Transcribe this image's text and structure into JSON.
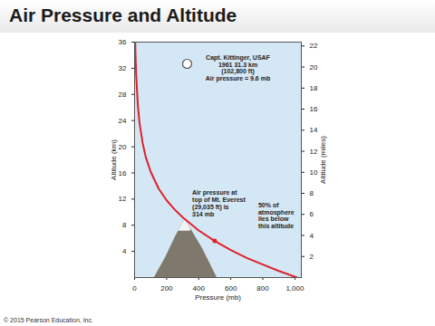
{
  "footer": "© 2015 Pearson Education, Inc.",
  "chart_data": {
    "type": "line",
    "title": "Air Pressure and Altitude",
    "x_label": "Pressure (mb)",
    "y_label": "Altitude (km)",
    "y2_label": "Altitude (miles)",
    "x": [
      1013,
      900,
      800,
      700,
      600,
      500,
      400,
      300,
      250,
      200,
      150,
      100,
      70,
      50,
      30,
      20,
      10,
      6,
      4
    ],
    "values": [
      0,
      1,
      2,
      3,
      4.2,
      5.6,
      7.2,
      9.2,
      10.4,
      11.8,
      13.6,
      16.2,
      18.4,
      20.6,
      23.8,
      26.5,
      31,
      34,
      36
    ],
    "color": "#e0202a",
    "xlim": [
      0,
      1040
    ],
    "xticks": [
      0,
      200,
      400,
      600,
      800,
      1000
    ],
    "ylim": [
      0,
      36
    ],
    "yticks": [
      4,
      8,
      12,
      16,
      20,
      24,
      28,
      32,
      36
    ],
    "y2lim": [
      0,
      22.37
    ],
    "y2ticks": [
      2,
      4,
      6,
      8,
      10,
      12,
      14,
      16,
      18,
      20,
      22
    ],
    "grid": false,
    "annotations": [
      {
        "text": [
          "Capt. Kittinger, USAF",
          "1961 31.3 km",
          "(102,800 ft)",
          "Air pressure = 9.6 mb"
        ],
        "marker": "pin"
      },
      {
        "text": [
          "Air pressure at",
          "top of Mt. Everest",
          "(29,035 ft) is",
          "314 mb"
        ],
        "x": 314,
        "y": 8.85,
        "marker": "mountain"
      },
      {
        "text": [
          "50% of",
          "atmosphere",
          "lies below",
          "this altitude"
        ],
        "x": 500,
        "y": 5.6,
        "marker": "dot"
      }
    ]
  }
}
